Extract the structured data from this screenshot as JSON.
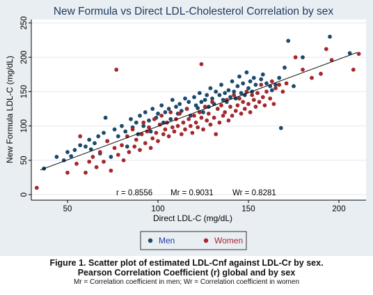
{
  "chart_data": {
    "type": "scatter",
    "title": "New Formula vs Direct LDL-Cholesterol Correlation by sex",
    "xlabel": "Direct LDL-C (mg/dL)",
    "ylabel": "New Formula LDL-C (mg/dL)",
    "xlim": [
      30,
      215
    ],
    "ylim": [
      -8,
      255
    ],
    "x_ticks": [
      50,
      100,
      150,
      200
    ],
    "y_ticks": [
      0,
      50,
      100,
      150,
      200,
      250
    ],
    "grid": true,
    "legend": "bottom",
    "annotation": {
      "r": "r = 0.8556",
      "mr": "Mr = 0.9031",
      "wr": "Wr = 0.8281"
    },
    "fit_line": {
      "x": [
        35,
        210
      ],
      "y": [
        36,
        207
      ]
    },
    "series": [
      {
        "name": "Men",
        "color": "#1b4a6b",
        "points": [
          [
            37,
            38
          ],
          [
            44,
            55
          ],
          [
            48,
            50
          ],
          [
            50,
            62
          ],
          [
            52,
            56
          ],
          [
            54,
            65
          ],
          [
            57,
            72
          ],
          [
            60,
            70
          ],
          [
            62,
            80
          ],
          [
            63,
            66
          ],
          [
            65,
            75
          ],
          [
            67,
            85
          ],
          [
            68,
            60
          ],
          [
            70,
            90
          ],
          [
            71,
            112
          ],
          [
            72,
            78
          ],
          [
            74,
            55
          ],
          [
            76,
            95
          ],
          [
            78,
            85
          ],
          [
            80,
            100
          ],
          [
            82,
            92
          ],
          [
            83,
            70
          ],
          [
            85,
            110
          ],
          [
            86,
            98
          ],
          [
            88,
            105
          ],
          [
            89,
            88
          ],
          [
            90,
            115
          ],
          [
            92,
            100
          ],
          [
            93,
            120
          ],
          [
            95,
            108
          ],
          [
            96,
            92
          ],
          [
            97,
            125
          ],
          [
            99,
            112
          ],
          [
            100,
            118
          ],
          [
            102,
            130
          ],
          [
            103,
            105
          ],
          [
            104,
            120
          ],
          [
            106,
            125
          ],
          [
            107,
            110
          ],
          [
            108,
            138
          ],
          [
            110,
            128
          ],
          [
            111,
            118
          ],
          [
            112,
            132
          ],
          [
            113,
            122
          ],
          [
            115,
            140
          ],
          [
            116,
            125
          ],
          [
            117,
            135
          ],
          [
            118,
            115
          ],
          [
            120,
            142
          ],
          [
            121,
            130
          ],
          [
            122,
            126
          ],
          [
            123,
            148
          ],
          [
            124,
            135
          ],
          [
            125,
            120
          ],
          [
            126,
            138
          ],
          [
            127,
            145
          ],
          [
            128,
            128
          ],
          [
            129,
            155
          ],
          [
            130,
            140
          ],
          [
            131,
            132
          ],
          [
            132,
            150
          ],
          [
            133,
            125
          ],
          [
            134,
            145
          ],
          [
            135,
            160
          ],
          [
            136,
            138
          ],
          [
            137,
            148
          ],
          [
            138,
            135
          ],
          [
            139,
            152
          ],
          [
            140,
            142
          ],
          [
            141,
            165
          ],
          [
            142,
            150
          ],
          [
            143,
            140
          ],
          [
            144,
            158
          ],
          [
            145,
            172
          ],
          [
            146,
            148
          ],
          [
            147,
            162
          ],
          [
            148,
            145
          ],
          [
            149,
            178
          ],
          [
            150,
            155
          ],
          [
            151,
            165
          ],
          [
            152,
            150
          ],
          [
            153,
            170
          ],
          [
            154,
            160
          ],
          [
            155,
            148
          ],
          [
            157,
            168
          ],
          [
            158,
            175
          ],
          [
            160,
            162
          ],
          [
            162,
            158
          ],
          [
            163,
            152
          ],
          [
            165,
            160
          ],
          [
            167,
            170
          ],
          [
            168,
            97
          ],
          [
            170,
            185
          ],
          [
            172,
            224
          ],
          [
            175,
            158
          ],
          [
            180,
            200
          ],
          [
            195,
            230
          ],
          [
            206,
            206
          ]
        ]
      },
      {
        "name": "Women",
        "color": "#a4282e",
        "points": [
          [
            33,
            10
          ],
          [
            50,
            32
          ],
          [
            55,
            45
          ],
          [
            57,
            85
          ],
          [
            60,
            32
          ],
          [
            62,
            48
          ],
          [
            64,
            55
          ],
          [
            66,
            40
          ],
          [
            68,
            62
          ],
          [
            70,
            48
          ],
          [
            72,
            78
          ],
          [
            74,
            35
          ],
          [
            76,
            68
          ],
          [
            77,
            182
          ],
          [
            78,
            58
          ],
          [
            80,
            72
          ],
          [
            81,
            50
          ],
          [
            83,
            85
          ],
          [
            84,
            62
          ],
          [
            86,
            95
          ],
          [
            87,
            70
          ],
          [
            88,
            80
          ],
          [
            90,
            65
          ],
          [
            91,
            88
          ],
          [
            92,
            105
          ],
          [
            93,
            75
          ],
          [
            94,
            92
          ],
          [
            95,
            98
          ],
          [
            96,
            68
          ],
          [
            97,
            82
          ],
          [
            98,
            110
          ],
          [
            99,
            90
          ],
          [
            100,
            78
          ],
          [
            101,
            102
          ],
          [
            102,
            115
          ],
          [
            103,
            88
          ],
          [
            104,
            95
          ],
          [
            105,
            105
          ],
          [
            106,
            85
          ],
          [
            107,
            120
          ],
          [
            108,
            98
          ],
          [
            109,
            92
          ],
          [
            110,
            110
          ],
          [
            111,
            100
          ],
          [
            112,
            118
          ],
          [
            113,
            88
          ],
          [
            114,
            105
          ],
          [
            115,
            95
          ],
          [
            116,
            125
          ],
          [
            117,
            110
          ],
          [
            118,
            100
          ],
          [
            119,
            90
          ],
          [
            120,
            115
          ],
          [
            121,
            105
          ],
          [
            122,
            98
          ],
          [
            123,
            120
          ],
          [
            124,
            112
          ],
          [
            125,
            95
          ],
          [
            126,
            128
          ],
          [
            127,
            108
          ],
          [
            128,
            118
          ],
          [
            129,
            102
          ],
          [
            130,
            135
          ],
          [
            131,
            112
          ],
          [
            132,
            88
          ],
          [
            133,
            125
          ],
          [
            134,
            105
          ],
          [
            135,
            130
          ],
          [
            136,
            115
          ],
          [
            137,
            120
          ],
          [
            138,
            138
          ],
          [
            139,
            108
          ],
          [
            140,
            128
          ],
          [
            141,
            115
          ],
          [
            142,
            145
          ],
          [
            143,
            122
          ],
          [
            144,
            130
          ],
          [
            145,
            140
          ],
          [
            146,
            118
          ],
          [
            147,
            135
          ],
          [
            148,
            125
          ],
          [
            149,
            150
          ],
          [
            150,
            132
          ],
          [
            151,
            120
          ],
          [
            152,
            145
          ],
          [
            153,
            138
          ],
          [
            154,
            128
          ],
          [
            155,
            148
          ],
          [
            156,
            135
          ],
          [
            157,
            160
          ],
          [
            158,
            142
          ],
          [
            159,
            130
          ],
          [
            160,
            150
          ],
          [
            162,
            140
          ],
          [
            163,
            165
          ],
          [
            164,
            132
          ],
          [
            165,
            155
          ],
          [
            167,
            160
          ],
          [
            169,
            150
          ],
          [
            171,
            162
          ],
          [
            124,
            190
          ],
          [
            176,
            200
          ],
          [
            180,
            182
          ],
          [
            185,
            170
          ],
          [
            190,
            176
          ],
          [
            193,
            212
          ],
          [
            196,
            196
          ],
          [
            208,
            182
          ],
          [
            211,
            205
          ]
        ]
      }
    ]
  },
  "caption": {
    "line1": "Figure 1. Scatter plot of estimated LDL-Cnf against LDL-Cr by sex.",
    "line2": "Pearson Correlation Coefficient (r) global and by sex",
    "line3": "Mr = Correlation coefficient in men; Wr = Correlation coefficient in women"
  }
}
